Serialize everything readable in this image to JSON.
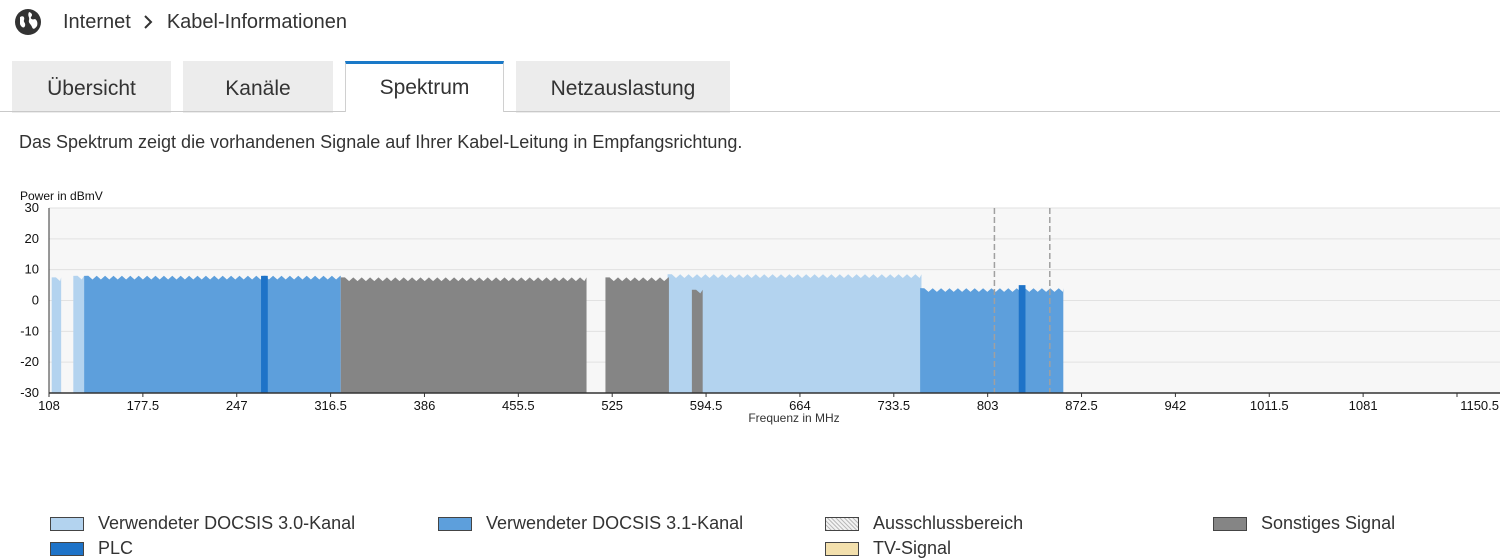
{
  "breadcrumb": {
    "icon": "globe-icon",
    "items": [
      "Internet",
      "Kabel-Informationen"
    ],
    "separator_icon": "chevron-right-icon"
  },
  "tabs": [
    {
      "label": "Übersicht",
      "active": false
    },
    {
      "label": "Kanäle",
      "active": false
    },
    {
      "label": "Spektrum",
      "active": true
    },
    {
      "label": "Netzauslastung",
      "active": false
    }
  ],
  "intro": "Das Spektrum zeigt die vorhandenen Signale auf Ihrer Kabel-Leitung in Empfangsrichtung.",
  "chart_data": {
    "type": "area",
    "ylabel": "Power in dBmV",
    "xlabel": "Frequenz in MHz",
    "ylim": [
      -30,
      30
    ],
    "yticks": [
      30,
      20,
      10,
      0,
      -10,
      -20,
      -30
    ],
    "xlim": [
      108,
      1150.5
    ],
    "xticks": [
      "108",
      "177.5",
      "247",
      "316.5",
      "386",
      "455.5",
      "525",
      "594.5",
      "664",
      "733.5",
      "803",
      "872.5",
      "942",
      "1011.5",
      "1081",
      "1150.5"
    ],
    "grid": true,
    "colors": {
      "docsis30": "#b3d3ef",
      "docsis31": "#5d9fdc",
      "plc": "#1e73c8",
      "other": "#858585",
      "exclusion": "#e8e8e8",
      "tv": "#f3e0ad"
    },
    "series": [
      {
        "name": "Verwendeter DOCSIS 3.0-Kanal",
        "segments": [
          [
            110,
            117,
            7.5
          ],
          [
            126,
            134,
            8
          ],
          [
            566,
            754,
            8.5
          ]
        ]
      },
      {
        "name": "Verwendeter DOCSIS 3.1-Kanal",
        "segments": [
          [
            134,
            324,
            8
          ],
          [
            753,
            859,
            4
          ]
        ]
      },
      {
        "name": "Sonstiges Signal",
        "segments": [
          [
            324,
            506,
            7.5
          ],
          [
            520,
            567,
            7.5
          ],
          [
            584,
            592,
            3.5
          ]
        ]
      },
      {
        "name": "PLC",
        "segments": [
          [
            265,
            270,
            8
          ],
          [
            826,
            831,
            5
          ]
        ]
      },
      {
        "name": "Ausschlussbereich",
        "segments": [
          [
            808,
            809
          ],
          [
            849,
            850
          ]
        ]
      },
      {
        "name": "TV-Signal",
        "segments": []
      }
    ]
  },
  "legend": [
    {
      "label": "Verwendeter DOCSIS 3.0-Kanal",
      "color": "#b3d3ef"
    },
    {
      "label": "Verwendeter DOCSIS 3.1-Kanal",
      "color": "#5d9fdc"
    },
    {
      "label": "Ausschlussbereich",
      "color": "#e8e8e8"
    },
    {
      "label": "Sonstiges Signal",
      "color": "#858585"
    },
    {
      "label": "PLC",
      "color": "#1e73c8"
    },
    {
      "label": "TV-Signal",
      "color": "#f3e0ad"
    }
  ]
}
